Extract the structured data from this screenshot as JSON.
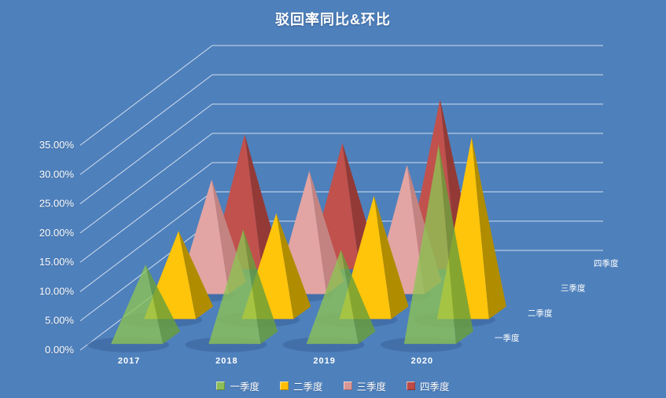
{
  "title": "驳回率同比&环比",
  "chart_data": {
    "type": "bar",
    "subtype": "pyramid-3d",
    "title": "驳回率同比&环比",
    "categories": [
      "2017",
      "2018",
      "2019",
      "2020"
    ],
    "series": [
      {
        "name": "一季度",
        "values": [
          12.5,
          18.5,
          15,
          33
        ],
        "color": "#8DC453",
        "side_color": "#699F3B",
        "legend_color": "#8CBE56",
        "opacity": 0.78
      },
      {
        "name": "二季度",
        "values": [
          14,
          17,
          20,
          30
        ],
        "color": "#FFC50A",
        "side_color": "#B08C00",
        "legend_color": "#FFC003",
        "opacity": 1
      },
      {
        "name": "三季度",
        "values": [
          18.5,
          20,
          21,
          null
        ],
        "color": "#E2A5A3",
        "side_color": "#C28381",
        "legend_color": "#D79594",
        "opacity": 1
      },
      {
        "name": "四季度",
        "values": [
          22,
          20.5,
          28,
          null
        ],
        "color": "#C1514D",
        "side_color": "#943A36",
        "legend_color": "#BE4B48",
        "opacity": 1
      }
    ],
    "y_ticks": [
      {
        "value": 0,
        "label": "0.00%"
      },
      {
        "value": 5,
        "label": "5.00%"
      },
      {
        "value": 10,
        "label": "10.00%"
      },
      {
        "value": 15,
        "label": "15.00%"
      },
      {
        "value": 20,
        "label": "20.00%"
      },
      {
        "value": 25,
        "label": "25.00%"
      },
      {
        "value": 30,
        "label": "30.00%"
      },
      {
        "value": 35,
        "label": "35.00%"
      }
    ],
    "ylim": [
      0,
      35
    ],
    "grid": true,
    "legend_position": "bottom",
    "background": "#4E80BC",
    "gridline_color": "#E9EEF6",
    "shadow_color": "#35598F",
    "text_color": "#FFFFFF"
  }
}
